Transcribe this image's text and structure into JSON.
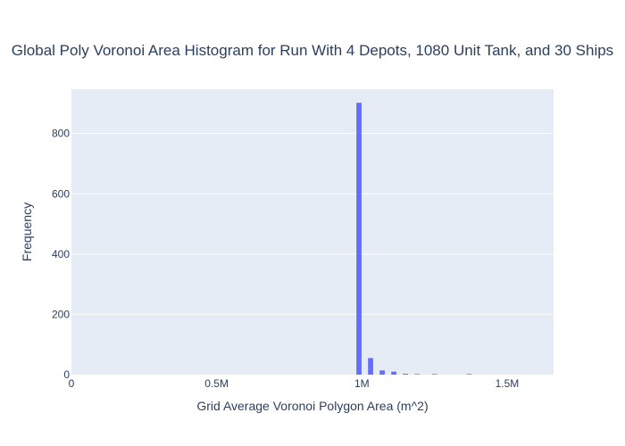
{
  "chart_data": {
    "type": "bar",
    "title": "Global Poly Voronoi Area Histogram for Run With 4 Depots, 1080 Unit Tank, and 30 Ships",
    "xlabel": "Grid Average Voronoi Polygon Area (m^2)",
    "ylabel": "Frequency",
    "xlim": [
      0,
      1660000
    ],
    "ylim": [
      0,
      947
    ],
    "x_ticks": [
      {
        "value": 0,
        "label": "0"
      },
      {
        "value": 500000,
        "label": "0.5M"
      },
      {
        "value": 1000000,
        "label": "1M"
      },
      {
        "value": 1500000,
        "label": "1.5M"
      }
    ],
    "y_ticks": [
      {
        "value": 0,
        "label": "0"
      },
      {
        "value": 200,
        "label": "200"
      },
      {
        "value": 400,
        "label": "400"
      },
      {
        "value": 600,
        "label": "600"
      },
      {
        "value": 800,
        "label": "800"
      }
    ],
    "bin_width": 20000,
    "bins": [
      {
        "start": 980000,
        "count": 902
      },
      {
        "start": 1020000,
        "count": 55
      },
      {
        "start": 1060000,
        "count": 14
      },
      {
        "start": 1100000,
        "count": 10
      },
      {
        "start": 1140000,
        "count": 3
      },
      {
        "start": 1180000,
        "count": 2
      },
      {
        "start": 1240000,
        "count": 2
      },
      {
        "start": 1360000,
        "count": 2
      }
    ],
    "grid": true,
    "colors": {
      "bar": "#636efa",
      "plot_bg": "#e5ecf6",
      "grid": "#ffffff",
      "text": "#2a3f5f"
    }
  }
}
